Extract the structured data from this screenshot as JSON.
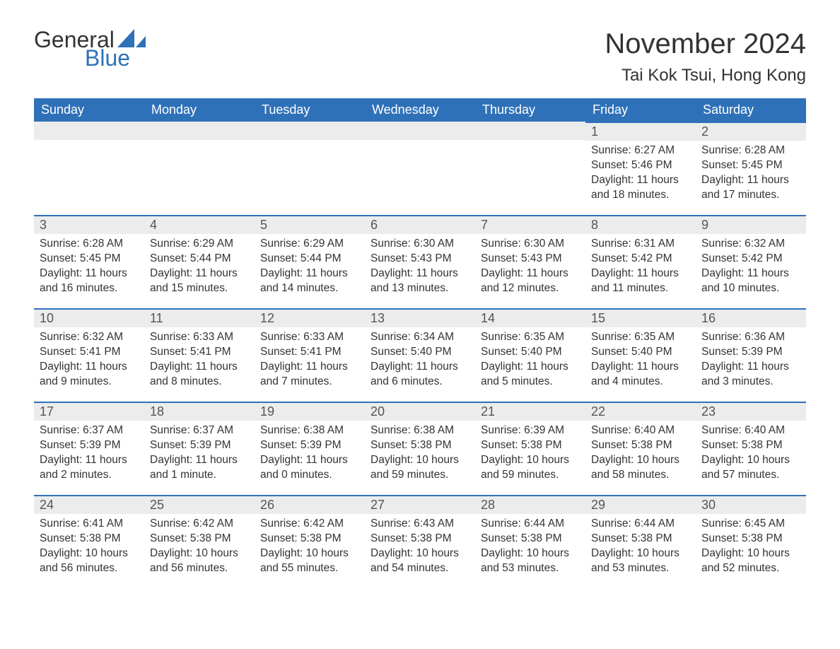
{
  "logo": {
    "text_general": "General",
    "text_blue": "Blue"
  },
  "title": {
    "month": "November 2024",
    "location": "Tai Kok Tsui, Hong Kong"
  },
  "style": {
    "header_bg": "#2f71b8",
    "header_fg": "#ffffff",
    "daynum_bg": "#ececec",
    "daynum_border": "#2f71b8",
    "body_bg": "#ffffff",
    "text_color": "#333333"
  },
  "weekdays": [
    "Sunday",
    "Monday",
    "Tuesday",
    "Wednesday",
    "Thursday",
    "Friday",
    "Saturday"
  ],
  "weeks": [
    [
      null,
      null,
      null,
      null,
      null,
      {
        "n": "1",
        "sunrise": "6:27 AM",
        "sunset": "5:46 PM",
        "daylight": "11 hours and 18 minutes."
      },
      {
        "n": "2",
        "sunrise": "6:28 AM",
        "sunset": "5:45 PM",
        "daylight": "11 hours and 17 minutes."
      }
    ],
    [
      {
        "n": "3",
        "sunrise": "6:28 AM",
        "sunset": "5:45 PM",
        "daylight": "11 hours and 16 minutes."
      },
      {
        "n": "4",
        "sunrise": "6:29 AM",
        "sunset": "5:44 PM",
        "daylight": "11 hours and 15 minutes."
      },
      {
        "n": "5",
        "sunrise": "6:29 AM",
        "sunset": "5:44 PM",
        "daylight": "11 hours and 14 minutes."
      },
      {
        "n": "6",
        "sunrise": "6:30 AM",
        "sunset": "5:43 PM",
        "daylight": "11 hours and 13 minutes."
      },
      {
        "n": "7",
        "sunrise": "6:30 AM",
        "sunset": "5:43 PM",
        "daylight": "11 hours and 12 minutes."
      },
      {
        "n": "8",
        "sunrise": "6:31 AM",
        "sunset": "5:42 PM",
        "daylight": "11 hours and 11 minutes."
      },
      {
        "n": "9",
        "sunrise": "6:32 AM",
        "sunset": "5:42 PM",
        "daylight": "11 hours and 10 minutes."
      }
    ],
    [
      {
        "n": "10",
        "sunrise": "6:32 AM",
        "sunset": "5:41 PM",
        "daylight": "11 hours and 9 minutes."
      },
      {
        "n": "11",
        "sunrise": "6:33 AM",
        "sunset": "5:41 PM",
        "daylight": "11 hours and 8 minutes."
      },
      {
        "n": "12",
        "sunrise": "6:33 AM",
        "sunset": "5:41 PM",
        "daylight": "11 hours and 7 minutes."
      },
      {
        "n": "13",
        "sunrise": "6:34 AM",
        "sunset": "5:40 PM",
        "daylight": "11 hours and 6 minutes."
      },
      {
        "n": "14",
        "sunrise": "6:35 AM",
        "sunset": "5:40 PM",
        "daylight": "11 hours and 5 minutes."
      },
      {
        "n": "15",
        "sunrise": "6:35 AM",
        "sunset": "5:40 PM",
        "daylight": "11 hours and 4 minutes."
      },
      {
        "n": "16",
        "sunrise": "6:36 AM",
        "sunset": "5:39 PM",
        "daylight": "11 hours and 3 minutes."
      }
    ],
    [
      {
        "n": "17",
        "sunrise": "6:37 AM",
        "sunset": "5:39 PM",
        "daylight": "11 hours and 2 minutes."
      },
      {
        "n": "18",
        "sunrise": "6:37 AM",
        "sunset": "5:39 PM",
        "daylight": "11 hours and 1 minute."
      },
      {
        "n": "19",
        "sunrise": "6:38 AM",
        "sunset": "5:39 PM",
        "daylight": "11 hours and 0 minutes."
      },
      {
        "n": "20",
        "sunrise": "6:38 AM",
        "sunset": "5:38 PM",
        "daylight": "10 hours and 59 minutes."
      },
      {
        "n": "21",
        "sunrise": "6:39 AM",
        "sunset": "5:38 PM",
        "daylight": "10 hours and 59 minutes."
      },
      {
        "n": "22",
        "sunrise": "6:40 AM",
        "sunset": "5:38 PM",
        "daylight": "10 hours and 58 minutes."
      },
      {
        "n": "23",
        "sunrise": "6:40 AM",
        "sunset": "5:38 PM",
        "daylight": "10 hours and 57 minutes."
      }
    ],
    [
      {
        "n": "24",
        "sunrise": "6:41 AM",
        "sunset": "5:38 PM",
        "daylight": "10 hours and 56 minutes."
      },
      {
        "n": "25",
        "sunrise": "6:42 AM",
        "sunset": "5:38 PM",
        "daylight": "10 hours and 56 minutes."
      },
      {
        "n": "26",
        "sunrise": "6:42 AM",
        "sunset": "5:38 PM",
        "daylight": "10 hours and 55 minutes."
      },
      {
        "n": "27",
        "sunrise": "6:43 AM",
        "sunset": "5:38 PM",
        "daylight": "10 hours and 54 minutes."
      },
      {
        "n": "28",
        "sunrise": "6:44 AM",
        "sunset": "5:38 PM",
        "daylight": "10 hours and 53 minutes."
      },
      {
        "n": "29",
        "sunrise": "6:44 AM",
        "sunset": "5:38 PM",
        "daylight": "10 hours and 53 minutes."
      },
      {
        "n": "30",
        "sunrise": "6:45 AM",
        "sunset": "5:38 PM",
        "daylight": "10 hours and 52 minutes."
      }
    ]
  ],
  "labels": {
    "sunrise": "Sunrise: ",
    "sunset": "Sunset: ",
    "daylight": "Daylight: "
  }
}
